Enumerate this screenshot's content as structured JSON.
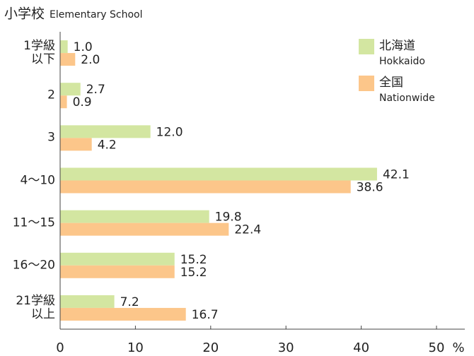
{
  "chart_data": {
    "type": "hbar",
    "title": "小学校",
    "subtitle": "Elementary School",
    "categories": [
      "1学級\n以下",
      "2",
      "3",
      "4～10",
      "11～15",
      "16～20",
      "21学級\n以上"
    ],
    "series": [
      {
        "name": "北海道",
        "name_en": "Hokkaido",
        "color": "#d3e6a1",
        "values": [
          1.0,
          2.7,
          12.0,
          42.1,
          19.8,
          15.2,
          7.2
        ],
        "value_labels": [
          "1.0",
          "2.7",
          "12.0",
          "42.1",
          "19.8",
          "15.2",
          "7.2"
        ]
      },
      {
        "name": "全国",
        "name_en": "Nationwide",
        "color": "#fcc68a",
        "values": [
          2.0,
          0.9,
          4.2,
          38.6,
          22.4,
          15.2,
          16.7
        ],
        "value_labels": [
          "2.0",
          "0.9",
          "4.2",
          "38.6",
          "22.4",
          "15.2",
          "16.7"
        ]
      }
    ],
    "xlim": [
      0,
      50
    ],
    "xticks": [
      0,
      10,
      20,
      30,
      40,
      50
    ],
    "x_unit": "%"
  }
}
